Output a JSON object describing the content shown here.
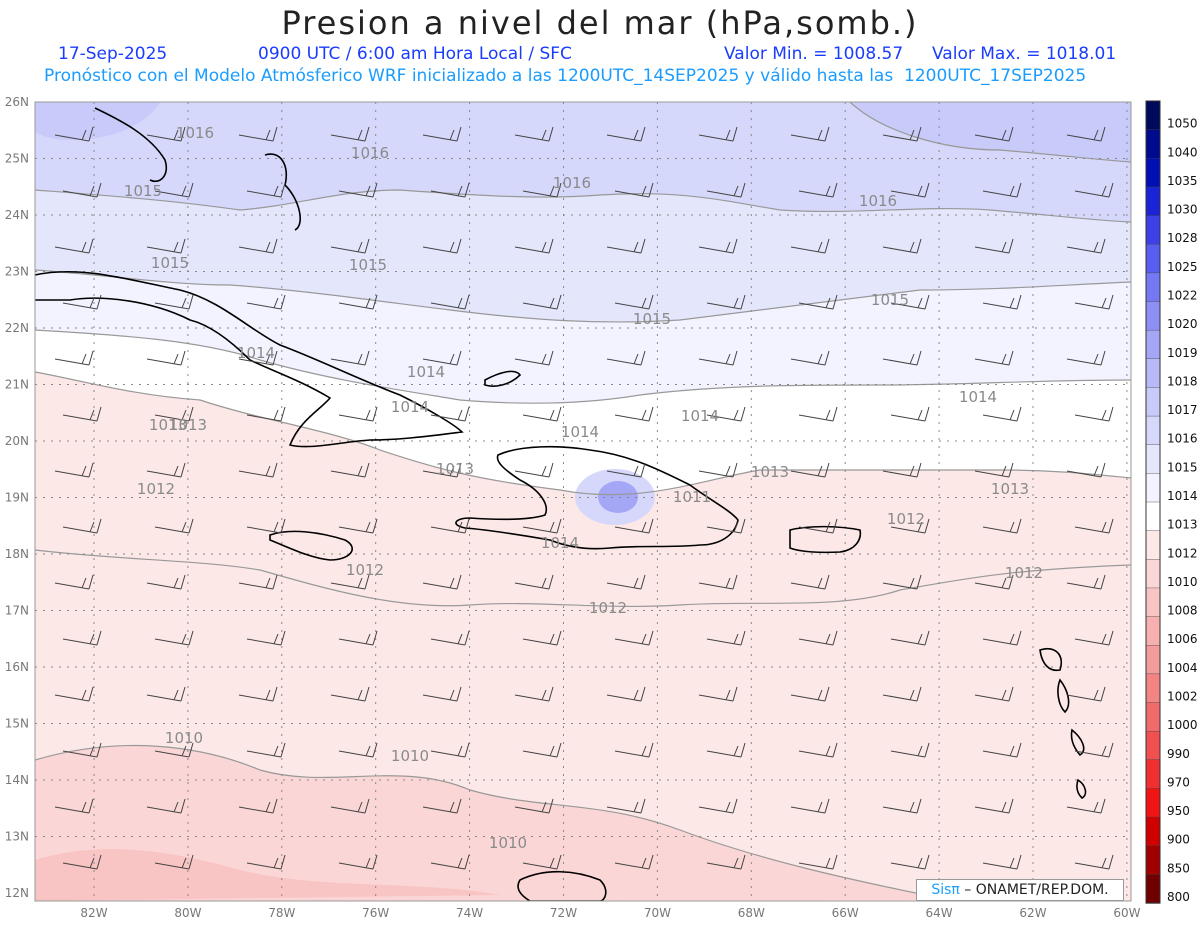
{
  "title": "Presion a nivel del mar (hPa,somb.)",
  "subtitle": {
    "date": "17-Sep-2025",
    "time": "0900 UTC / 6:00 am Hora Local / SFC",
    "min_label": "Valor Min. = 1008.57",
    "max_label": "Valor Max. = 1018.01",
    "model_line": "Pronóstico con el Modelo Atmósferico WRF inicializado a las 1200UTC_14SEP2025 y válido hasta las  1200UTC_17SEP2025"
  },
  "lat_labels": [
    "26N",
    "25N",
    "24N",
    "23N",
    "22N",
    "21N",
    "20N",
    "19N",
    "18N",
    "17N",
    "16N",
    "15N",
    "14N",
    "13N",
    "12N"
  ],
  "lon_labels": [
    "82W",
    "80W",
    "78W",
    "76W",
    "74W",
    "72W",
    "70W",
    "68W",
    "66W",
    "64W",
    "62W",
    "60W"
  ],
  "colorbar": {
    "levels": [
      "1050",
      "1040",
      "1035",
      "1030",
      "1028",
      "1025",
      "1022",
      "1020",
      "1019",
      "1018",
      "1017",
      "1016",
      "1015",
      "1014",
      "1013",
      "1012",
      "1010",
      "1008",
      "1006",
      "1004",
      "1002",
      "1000",
      "990",
      "970",
      "950",
      "900",
      "850",
      "800"
    ],
    "colors": [
      "#000a5a",
      "#000a8c",
      "#0010b4",
      "#1a24d6",
      "#3c40e6",
      "#5a5ef0",
      "#7478f2",
      "#8c90f4",
      "#a4a6f6",
      "#b8baf8",
      "#c8caf9",
      "#d6d8fb",
      "#e4e6fc",
      "#f2f3fe",
      "#ffffff",
      "#fde8e8",
      "#fbd6d6",
      "#f9c4c4",
      "#f6b0b0",
      "#f49c9c",
      "#f28484",
      "#f06c6c",
      "#f05050",
      "#f03030",
      "#f01414",
      "#d00000",
      "#a00000",
      "#700000"
    ]
  },
  "contour_labels": [
    "1016",
    "1016",
    "1016",
    "1016",
    "1015",
    "1015",
    "1015",
    "1015",
    "1015",
    "1014",
    "1014",
    "1014",
    "1014",
    "1014",
    "1014",
    "1014",
    "1013",
    "1013",
    "1013",
    "1013",
    "1012",
    "1012",
    "1012",
    "1012",
    "1012",
    "1010",
    "1010",
    "1010",
    "1011",
    "1013"
  ],
  "credit": {
    "sis": "Sisπ",
    "rest": " – ONAMET/REP.DOM."
  }
}
